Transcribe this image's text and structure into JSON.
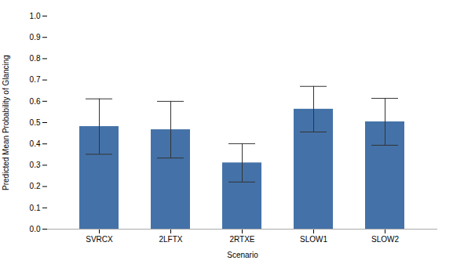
{
  "chart_data": {
    "type": "bar",
    "xlabel": "Scenario",
    "ylabel": "Predicted Mean Probability of Glancing",
    "categories": [
      "SVRCX",
      "2LFTX",
      "2RTXE",
      "SLOW1",
      "SLOW2"
    ],
    "values": [
      0.4815,
      0.4667,
      0.3111,
      0.563,
      0.5037
    ],
    "errors_upper": [
      0.13,
      0.133,
      0.09,
      0.107,
      0.11
    ],
    "errors_lower": [
      0.13,
      0.133,
      0.09,
      0.107,
      0.11
    ],
    "color": "#4472a8",
    "ylim": [
      0,
      1.0
    ],
    "yticks": [
      {
        "value": 0,
        "label": "0.0"
      },
      0.1,
      0.2,
      0.3,
      0.4,
      0.5,
      0.6,
      0.7,
      0.8,
      0.9,
      {
        "value": 1,
        "label": "1.0"
      }
    ],
    "grid": false
  }
}
